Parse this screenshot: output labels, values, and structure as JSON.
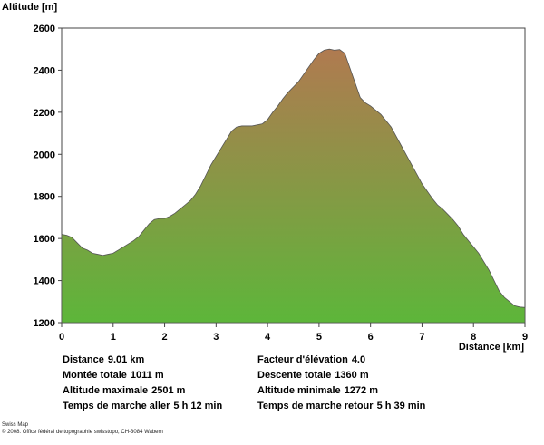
{
  "chart_data": {
    "type": "area",
    "ylabel": "Altitude [m]",
    "xlabel": "Distance [km]",
    "xlim": [
      0,
      9
    ],
    "ylim": [
      1200,
      2600
    ],
    "x_ticks": [
      0,
      1,
      2,
      3,
      4,
      5,
      6,
      7,
      8,
      9
    ],
    "y_ticks": [
      1200,
      1400,
      1600,
      1800,
      2000,
      2200,
      2400,
      2600
    ],
    "grid": false,
    "fill_colors": {
      "top": "#b07a50",
      "bottom": "#5db63a"
    },
    "series": [
      {
        "x": [
          0,
          0.1,
          0.2,
          0.3,
          0.4,
          0.5,
          0.6,
          0.7,
          0.8,
          0.9,
          1.0,
          1.1,
          1.2,
          1.3,
          1.4,
          1.5,
          1.6,
          1.7,
          1.8,
          1.9,
          2.0,
          2.1,
          2.2,
          2.3,
          2.4,
          2.5,
          2.6,
          2.7,
          2.8,
          2.9,
          3.0,
          3.1,
          3.2,
          3.3,
          3.4,
          3.5,
          3.6,
          3.7,
          3.8,
          3.9,
          4.0,
          4.1,
          4.2,
          4.3,
          4.4,
          4.5,
          4.6,
          4.7,
          4.8,
          4.9,
          5.0,
          5.1,
          5.2,
          5.3,
          5.4,
          5.5,
          5.6,
          5.7,
          5.8,
          5.9,
          6.0,
          6.1,
          6.2,
          6.3,
          6.4,
          6.5,
          6.6,
          6.7,
          6.8,
          6.9,
          7.0,
          7.1,
          7.2,
          7.3,
          7.4,
          7.5,
          7.6,
          7.7,
          7.8,
          7.9,
          8.0,
          8.1,
          8.2,
          8.3,
          8.4,
          8.5,
          8.6,
          8.7,
          8.8,
          8.9,
          9.0
        ],
        "y": [
          1620,
          1615,
          1605,
          1580,
          1555,
          1545,
          1530,
          1525,
          1520,
          1525,
          1530,
          1545,
          1560,
          1575,
          1590,
          1610,
          1640,
          1670,
          1690,
          1695,
          1695,
          1705,
          1720,
          1740,
          1760,
          1780,
          1810,
          1850,
          1900,
          1950,
          1990,
          2030,
          2070,
          2110,
          2130,
          2135,
          2135,
          2135,
          2140,
          2145,
          2165,
          2200,
          2230,
          2265,
          2295,
          2320,
          2345,
          2380,
          2415,
          2450,
          2480,
          2495,
          2500,
          2495,
          2498,
          2480,
          2410,
          2340,
          2270,
          2245,
          2230,
          2210,
          2190,
          2160,
          2130,
          2085,
          2040,
          1995,
          1950,
          1905,
          1860,
          1825,
          1790,
          1760,
          1740,
          1715,
          1690,
          1660,
          1620,
          1590,
          1560,
          1530,
          1490,
          1450,
          1400,
          1350,
          1320,
          1300,
          1280,
          1274,
          1272
        ]
      }
    ]
  },
  "stats": {
    "left": [
      {
        "label": "Distance",
        "value": "9.01 km"
      },
      {
        "label": "Montée totale",
        "value": "1011 m"
      },
      {
        "label": "Altitude maximale",
        "value": "2501 m"
      },
      {
        "label": "Temps de marche aller",
        "value": "5 h 12 min"
      }
    ],
    "right": [
      {
        "label": "Facteur d'élévation",
        "value": "4.0"
      },
      {
        "label": "Descente totale",
        "value": "1360 m"
      },
      {
        "label": "Altitude minimale",
        "value": "1272 m"
      },
      {
        "label": "Temps de marche retour",
        "value": "5 h 39 min"
      }
    ]
  },
  "footer": {
    "line1": "Swiss Map",
    "line2": "© 2008. Office fédéral de topographie swisstopo, CH-3084 Wabern"
  }
}
